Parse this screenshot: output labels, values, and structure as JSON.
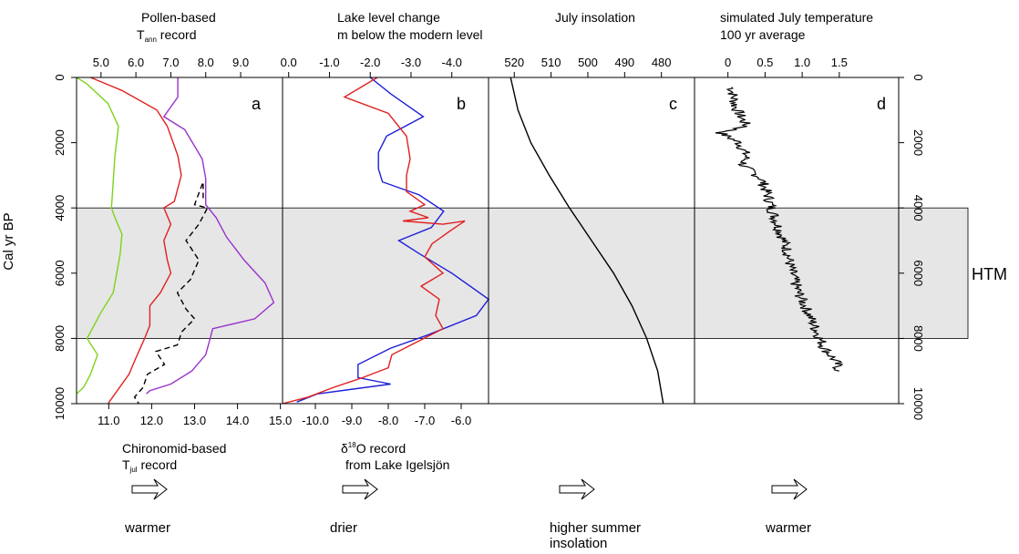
{
  "figure": {
    "y_axis": {
      "label": "Cal yr BP",
      "range": [
        0,
        10000
      ],
      "ticks": [
        0,
        2000,
        4000,
        6000,
        8000,
        10000
      ],
      "right_ticks": [
        0,
        2000,
        4000,
        6000,
        8000,
        10000
      ]
    },
    "htm_band": {
      "from": 4000,
      "to": 8000,
      "label": "HTM",
      "color": "#e6e6e6"
    },
    "panels": [
      {
        "id": "a",
        "letter": "a",
        "top_header": {
          "line1": "Pollen-based",
          "line2_main": "T",
          "line2_sub": "ann",
          "line2_rest": " record"
        },
        "bottom_header": {
          "line1": "Chironomid-based",
          "line2_main": "T",
          "line2_sub": "jul",
          "line2_rest": " record"
        },
        "arrow_label": "warmer"
      },
      {
        "id": "b",
        "letter": "b",
        "top_header": {
          "line1": "Lake level change",
          "line2": "m below the modern level"
        },
        "bottom_header": {
          "line1_main": "δ",
          "line1_sup": "18",
          "line1_rest": "O record",
          "line2": "from Lake Igelsjön"
        },
        "arrow_label": "drier"
      },
      {
        "id": "c",
        "letter": "c",
        "top_header": {
          "line1": "July insolation"
        },
        "arrow_label": "higher summer",
        "arrow_label2": "insolation"
      },
      {
        "id": "d",
        "letter": "d",
        "top_header": {
          "line1": "simulated July temperature",
          "line2": "100 yr average"
        },
        "arrow_label": "warmer"
      }
    ]
  },
  "chart_data": [
    {
      "type": "line",
      "panel": "a",
      "x_top": {
        "name": "Pollen-based Tann (°C)",
        "ticks": [
          "5.0",
          "6.0",
          "7.0",
          "8.0",
          "9.0"
        ],
        "tick_values": [
          5,
          6,
          7,
          8,
          9
        ],
        "range": [
          4.3,
          10.2
        ]
      },
      "x_bottom": {
        "name": "Chironomid-based Tjul (°C)",
        "ticks": [
          "11.0",
          "12.0",
          "13.0",
          "14.0",
          "15.0"
        ],
        "tick_values": [
          11,
          12,
          13,
          14,
          15
        ],
        "range": [
          10.25,
          15.05
        ]
      },
      "series": [
        {
          "color": "#7dd31a",
          "axis": "top",
          "dash": false,
          "points": [
            [
              4.3,
              0
            ],
            [
              4.6,
              200
            ],
            [
              5.2,
              800
            ],
            [
              5.5,
              1500
            ],
            [
              5.4,
              2400
            ],
            [
              5.35,
              3200
            ],
            [
              5.3,
              4000
            ],
            [
              5.4,
              4300
            ],
            [
              5.6,
              4800
            ],
            [
              5.55,
              5400
            ],
            [
              5.45,
              6000
            ],
            [
              5.35,
              6600
            ],
            [
              5.0,
              7200
            ],
            [
              4.8,
              7600
            ],
            [
              4.6,
              8000
            ],
            [
              4.9,
              8500
            ],
            [
              4.7,
              9100
            ],
            [
              4.5,
              9500
            ],
            [
              4.3,
              9700
            ]
          ]
        },
        {
          "color": "#e02020",
          "axis": "top",
          "dash": false,
          "points": [
            [
              4.7,
              0
            ],
            [
              5.6,
              400
            ],
            [
              6.6,
              1000
            ],
            [
              6.9,
              1500
            ],
            [
              7.2,
              2400
            ],
            [
              7.3,
              3000
            ],
            [
              7.1,
              3800
            ],
            [
              6.8,
              4000
            ],
            [
              7.0,
              4500
            ],
            [
              6.8,
              5000
            ],
            [
              6.9,
              5600
            ],
            [
              7.0,
              6000
            ],
            [
              6.7,
              6600
            ],
            [
              6.4,
              7000
            ],
            [
              6.4,
              7600
            ],
            [
              6.25,
              8000
            ],
            [
              6.0,
              8600
            ],
            [
              5.8,
              9100
            ],
            [
              5.4,
              9700
            ],
            [
              5.2,
              10000
            ]
          ]
        },
        {
          "color": "#9932cc",
          "axis": "top",
          "dash": false,
          "points": [
            [
              7.2,
              0
            ],
            [
              7.2,
              600
            ],
            [
              6.8,
              1200
            ],
            [
              7.4,
              1600
            ],
            [
              7.9,
              2500
            ],
            [
              8.0,
              3100
            ],
            [
              8.0,
              3900
            ],
            [
              8.3,
              4300
            ],
            [
              8.6,
              4900
            ],
            [
              9.1,
              5600
            ],
            [
              9.7,
              6300
            ],
            [
              9.95,
              6900
            ],
            [
              9.4,
              7400
            ],
            [
              8.2,
              7700
            ],
            [
              8.1,
              8100
            ],
            [
              8.0,
              8500
            ],
            [
              7.6,
              9000
            ],
            [
              7.0,
              9400
            ],
            [
              6.4,
              9600
            ],
            [
              6.3,
              9700
            ]
          ]
        },
        {
          "color": "#000000",
          "axis": "bottom",
          "dash": true,
          "points": [
            [
              13.2,
              3700
            ],
            [
              13.2,
              3200
            ],
            [
              13.0,
              3900
            ],
            [
              13.3,
              4000
            ],
            [
              13.1,
              4500
            ],
            [
              12.8,
              5000
            ],
            [
              13.1,
              5600
            ],
            [
              12.9,
              6200
            ],
            [
              12.6,
              6600
            ],
            [
              12.8,
              7100
            ],
            [
              13.0,
              7400
            ],
            [
              12.7,
              7800
            ],
            [
              12.6,
              8200
            ],
            [
              12.1,
              8400
            ],
            [
              12.3,
              8800
            ],
            [
              11.9,
              9100
            ],
            [
              11.8,
              9500
            ],
            [
              11.6,
              9800
            ],
            [
              11.7,
              10000
            ]
          ]
        }
      ]
    },
    {
      "type": "line",
      "panel": "b",
      "x_top": {
        "name": "Lake level change (m below the modern level)",
        "ticks": [
          "0.0",
          "-1.0",
          "-2.0",
          "-3.0",
          "-4.0"
        ],
        "tick_values": [
          0,
          -1,
          -2,
          -3,
          -4
        ],
        "range": [
          0.15,
          -4.9
        ]
      },
      "x_bottom": {
        "name": "δ18O record from Lake Igelsjön (‰)",
        "ticks": [
          "-10.0",
          "-9.0",
          "-8.0",
          "-7.0",
          "-6.0"
        ],
        "tick_values": [
          -10,
          -9,
          -8,
          -7,
          -6
        ],
        "range": [
          -10.9,
          -5.25
        ]
      },
      "series": [
        {
          "color": "#1f1fd8",
          "axis": "top",
          "dash": false,
          "points": [
            [
              -2.0,
              0
            ],
            [
              -2.5,
              500
            ],
            [
              -3.3,
              1200
            ],
            [
              -2.4,
              1800
            ],
            [
              -2.2,
              2300
            ],
            [
              -2.2,
              2800
            ],
            [
              -2.3,
              3200
            ],
            [
              -3.2,
              3600
            ],
            [
              -3.8,
              4100
            ],
            [
              -3.5,
              4600
            ],
            [
              -2.7,
              5000
            ],
            [
              -3.2,
              5400
            ],
            [
              -4.0,
              6000
            ],
            [
              -4.9,
              6800
            ],
            [
              -4.6,
              7300
            ],
            [
              -3.4,
              7900
            ],
            [
              -2.5,
              8300
            ],
            [
              -1.7,
              8800
            ],
            [
              -1.7,
              9200
            ],
            [
              -2.5,
              9400
            ],
            [
              -0.7,
              9700
            ],
            [
              -0.2,
              9950
            ]
          ]
        },
        {
          "color": "#e02020",
          "axis": "bottom",
          "dash": false,
          "points": [
            [
              -8.3,
              0
            ],
            [
              -9.2,
              600
            ],
            [
              -8.0,
              1100
            ],
            [
              -7.5,
              1800
            ],
            [
              -7.4,
              2500
            ],
            [
              -7.5,
              3000
            ],
            [
              -7.5,
              3500
            ],
            [
              -7.0,
              3900
            ],
            [
              -7.4,
              4100
            ],
            [
              -6.9,
              4300
            ],
            [
              -7.6,
              4400
            ],
            [
              -6.5,
              4500
            ],
            [
              -5.9,
              4400
            ],
            [
              -6.3,
              4700
            ],
            [
              -6.8,
              5100
            ],
            [
              -7.0,
              5500
            ],
            [
              -6.5,
              6000
            ],
            [
              -7.1,
              6400
            ],
            [
              -6.6,
              6800
            ],
            [
              -6.7,
              7300
            ],
            [
              -6.5,
              7700
            ],
            [
              -7.2,
              8100
            ],
            [
              -7.9,
              8500
            ],
            [
              -8.0,
              8900
            ],
            [
              -8.7,
              9200
            ],
            [
              -9.5,
              9500
            ],
            [
              -10.2,
              9800
            ],
            [
              -10.9,
              10000
            ]
          ]
        }
      ]
    },
    {
      "type": "line",
      "panel": "c",
      "x_top": {
        "name": "July insolation (W/m²)",
        "ticks": [
          "520",
          "510",
          "500",
          "490",
          "480"
        ],
        "tick_values": [
          520,
          510,
          500,
          490,
          480
        ],
        "range": [
          527,
          471
        ]
      },
      "series": [
        {
          "color": "#000000",
          "axis": "top",
          "dash": false,
          "points": [
            [
              521,
              0
            ],
            [
              519,
              1000
            ],
            [
              515.5,
              2000
            ],
            [
              510.5,
              3000
            ],
            [
              505,
              4000
            ],
            [
              499,
              5000
            ],
            [
              493,
              6000
            ],
            [
              488,
              7000
            ],
            [
              484,
              8000
            ],
            [
              481,
              9000
            ],
            [
              479.5,
              10000
            ]
          ]
        }
      ]
    },
    {
      "type": "line",
      "panel": "d",
      "x_top": {
        "name": "simulated July temperature, 100 yr average (°C anomaly)",
        "ticks": [
          "0",
          "0.5",
          "1.0",
          "1.5"
        ],
        "tick_values": [
          0,
          0.5,
          1.0,
          1.5
        ],
        "range": [
          -0.45,
          2.3
        ]
      },
      "series": [
        {
          "color": "#000000",
          "axis": "top",
          "dash": false,
          "noisy": true,
          "points": [
            [
              0.05,
              300
            ],
            [
              0.1,
              900
            ],
            [
              0.25,
              1500
            ],
            [
              -0.1,
              1700
            ],
            [
              0.15,
              2000
            ],
            [
              0.25,
              2400
            ],
            [
              0.2,
              2700
            ],
            [
              0.45,
              3100
            ],
            [
              0.55,
              3700
            ],
            [
              0.6,
              4100
            ],
            [
              0.7,
              4700
            ],
            [
              0.8,
              5300
            ],
            [
              0.85,
              5900
            ],
            [
              0.95,
              6600
            ],
            [
              1.1,
              7300
            ],
            [
              1.2,
              7800
            ],
            [
              1.3,
              8300
            ],
            [
              1.45,
              8700
            ],
            [
              1.5,
              9000
            ]
          ]
        }
      ]
    }
  ]
}
